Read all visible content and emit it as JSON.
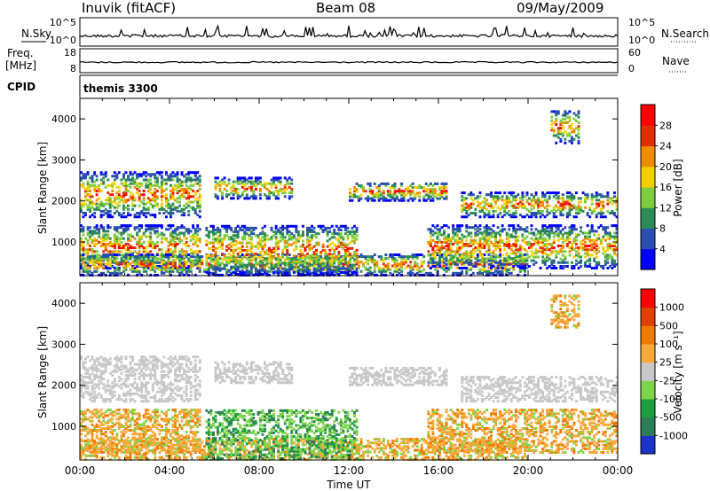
{
  "header": {
    "station": "Inuvik (fitACF)",
    "beam": "Beam 08",
    "date": "09/May/2009"
  },
  "panels": {
    "nsky": {
      "label": "N.Sky",
      "ticks": [
        "10^5",
        "10^0"
      ],
      "right_label": "N.Search",
      "right_ticks": [
        "10^5",
        "10^0"
      ]
    },
    "freq": {
      "label_line1": "Freq.",
      "label_line2": "[MHz]",
      "ticks": [
        "18",
        "8"
      ],
      "right_label": "Nave",
      "right_ticks": [
        "60",
        "0"
      ]
    },
    "cpid": {
      "label": "CPID",
      "text": "themis 3300"
    }
  },
  "chart_data": [
    {
      "type": "heatmap",
      "quantity": "Power",
      "ylabel": "Slant Range [km]",
      "colorbar_label": "Power [dB]",
      "ylim": [
        180,
        4500
      ],
      "yticks": [
        1000,
        2000,
        3000,
        4000
      ],
      "xlim_hours": [
        0,
        24
      ],
      "colorbar_ticks": [
        "28",
        "24",
        "20",
        "16",
        "12",
        "8",
        "4"
      ],
      "colorscale": [
        "#0000ff",
        "#2a4fb0",
        "#2e8b57",
        "#7ccd40",
        "#f5d000",
        "#f08c00",
        "#e03000",
        "#ff0000"
      ],
      "echo_regions": [
        {
          "t": [
            0.0,
            5.3
          ],
          "r": [
            1600,
            2700
          ]
        },
        {
          "t": [
            0.0,
            5.3
          ],
          "r": [
            350,
            1400
          ]
        },
        {
          "t": [
            0.0,
            20.0
          ],
          "r": [
            180,
            700
          ]
        },
        {
          "t": [
            5.6,
            12.3
          ],
          "r": [
            200,
            1400
          ]
        },
        {
          "t": [
            6.0,
            9.4
          ],
          "r": [
            2050,
            2550
          ]
        },
        {
          "t": [
            12.0,
            16.3
          ],
          "r": [
            2000,
            2450
          ]
        },
        {
          "t": [
            15.5,
            24.0
          ],
          "r": [
            350,
            1400
          ]
        },
        {
          "t": [
            17.0,
            24.0
          ],
          "r": [
            1600,
            2200
          ]
        },
        {
          "t": [
            21.0,
            22.3
          ],
          "r": [
            3400,
            4200
          ]
        }
      ]
    },
    {
      "type": "heatmap",
      "quantity": "Velocity",
      "ylabel": "Slant Range [km]",
      "colorbar_label": "Velocity [m s⁻¹]",
      "ylim": [
        180,
        4500
      ],
      "yticks": [
        1000,
        2000,
        3000,
        4000
      ],
      "xlim_hours": [
        0,
        24
      ],
      "colorbar_ticks": [
        "1000",
        "500",
        "100",
        "25",
        "-25",
        "-100",
        "-500",
        "-1000"
      ],
      "colorscale": [
        "#1c33c8",
        "#2e7d5a",
        "#1f9e3f",
        "#7ed44a",
        "#c8c8c8",
        "#f7a93a",
        "#f07a00",
        "#e04000",
        "#ff0000"
      ],
      "echo_regions": [
        {
          "t": [
            0.0,
            5.3
          ],
          "r": [
            1600,
            2700
          ]
        },
        {
          "t": [
            0.0,
            5.3
          ],
          "r": [
            350,
            1400
          ]
        },
        {
          "t": [
            0.0,
            20.0
          ],
          "r": [
            180,
            700
          ]
        },
        {
          "t": [
            5.6,
            12.3
          ],
          "r": [
            200,
            1400
          ]
        },
        {
          "t": [
            6.0,
            9.4
          ],
          "r": [
            2050,
            2550
          ]
        },
        {
          "t": [
            12.0,
            16.3
          ],
          "r": [
            2000,
            2450
          ]
        },
        {
          "t": [
            15.5,
            24.0
          ],
          "r": [
            350,
            1400
          ]
        },
        {
          "t": [
            17.0,
            24.0
          ],
          "r": [
            1600,
            2200
          ]
        },
        {
          "t": [
            21.0,
            22.3
          ],
          "r": [
            3400,
            4200
          ]
        }
      ]
    }
  ],
  "xaxis": {
    "ticks": [
      "00:00",
      "04:00",
      "08:00",
      "12:00",
      "16:00",
      "20:00",
      "00:00"
    ],
    "label": "Time UT"
  }
}
